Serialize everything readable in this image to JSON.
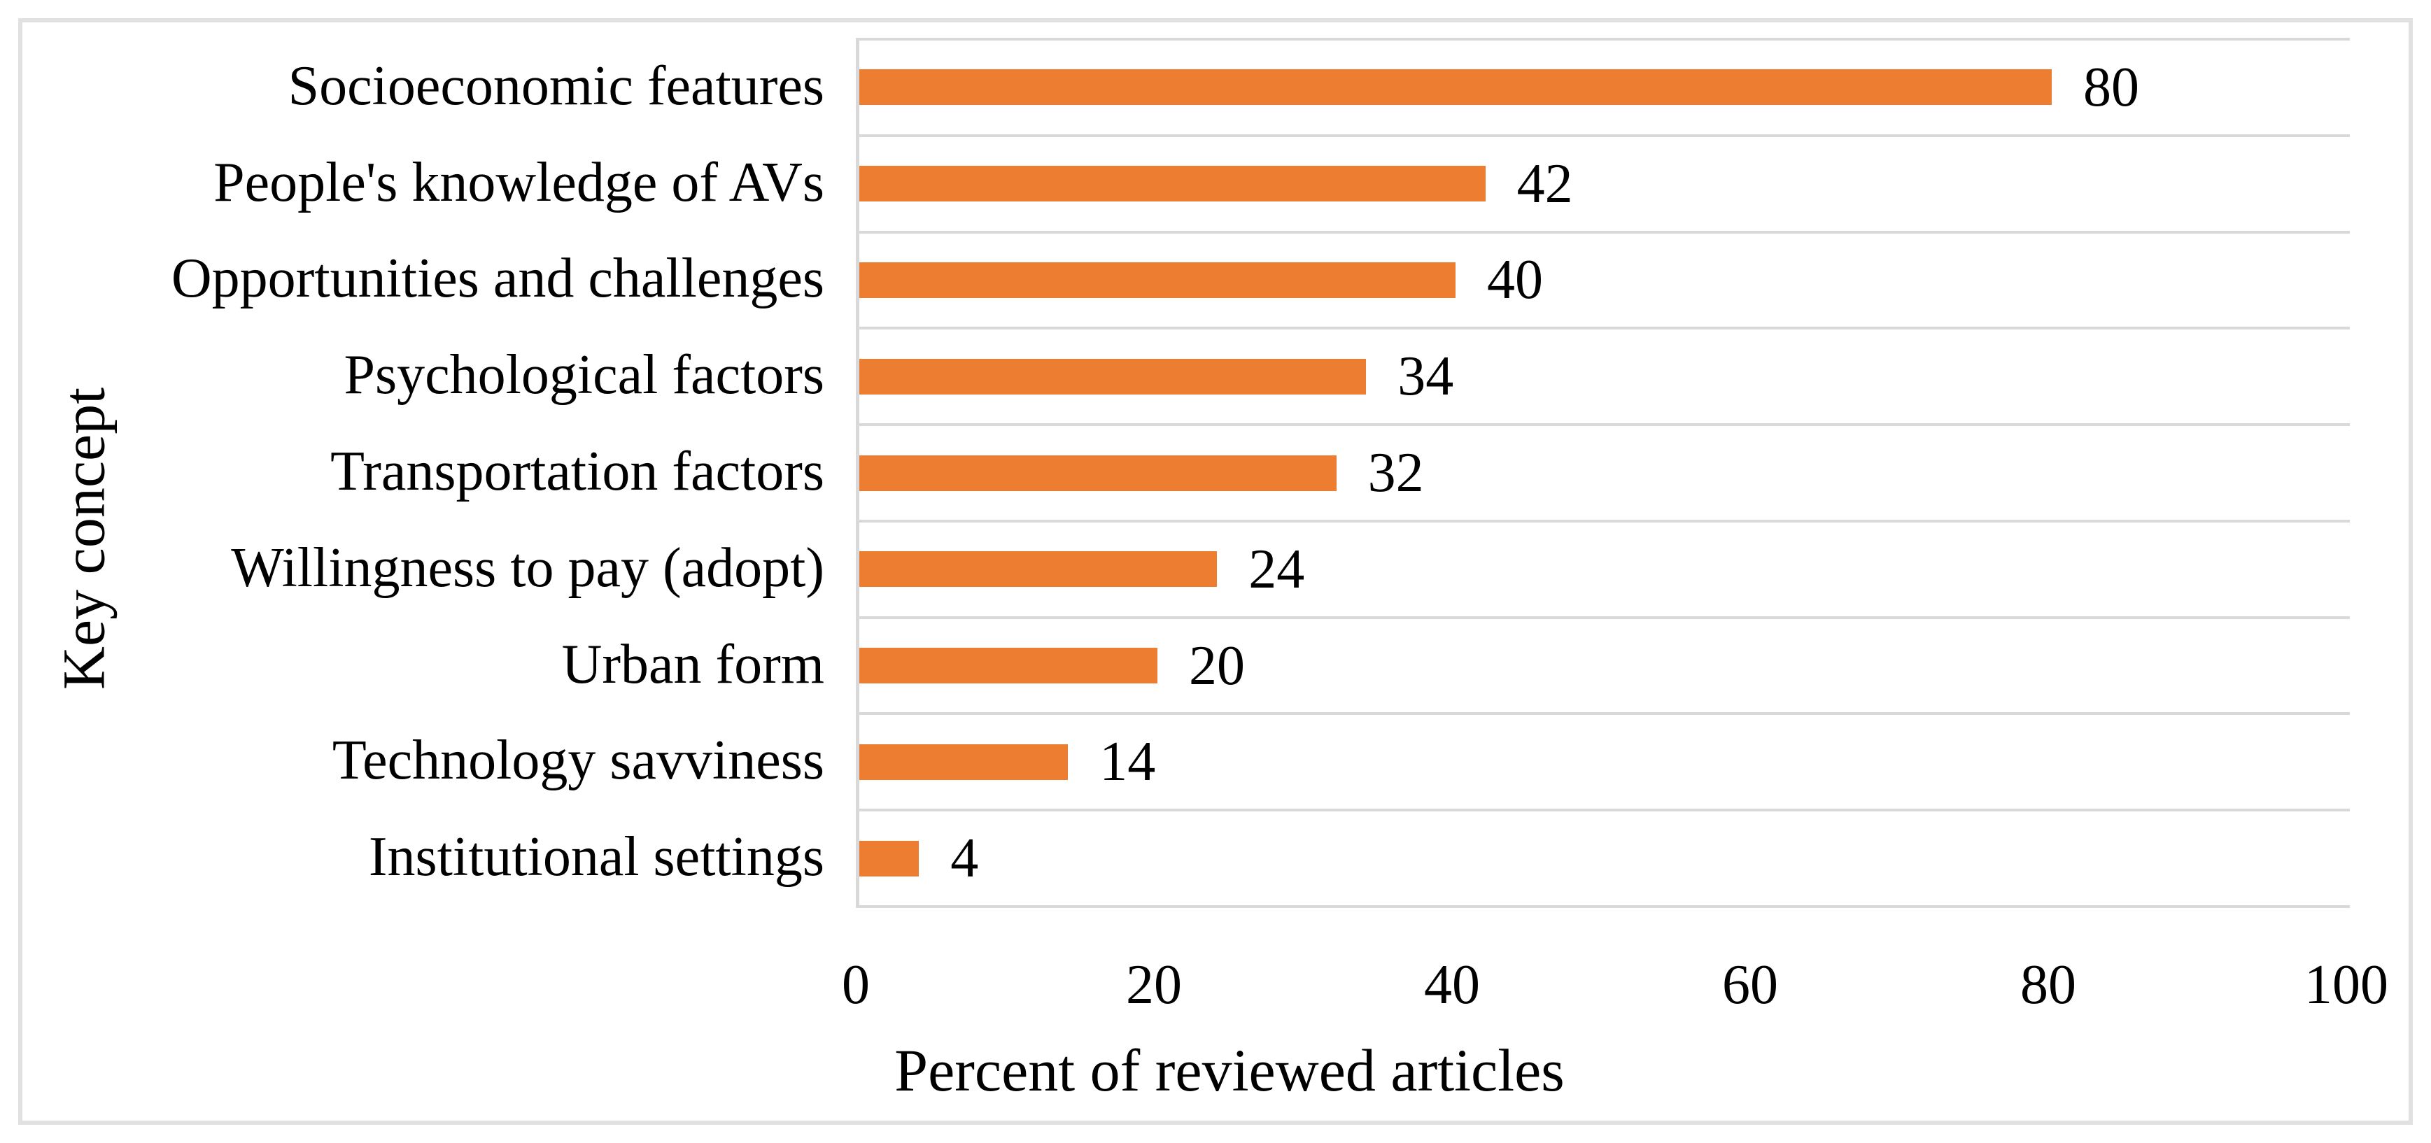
{
  "chart_data": {
    "type": "bar",
    "orientation": "horizontal",
    "categories": [
      "Socioeconomic features",
      "People's knowledge of AVs",
      "Opportunities and challenges",
      "Psychological factors",
      "Transportation factors",
      "Willingness to pay (adopt)",
      "Urban form",
      "Technology savviness",
      "Institutional settings"
    ],
    "values": [
      80,
      42,
      40,
      34,
      32,
      24,
      20,
      14,
      4
    ],
    "title": "",
    "xlabel": "Percent of reviewed articles",
    "ylabel": "Key concept",
    "xticks": [
      0,
      20,
      40,
      60,
      80,
      100
    ],
    "xlim": [
      0,
      100
    ],
    "grid": "horizontal-band-lines",
    "legend": "none",
    "data_labels": "outside-end",
    "colors": {
      "bar": "#ed7d31",
      "gridline": "#d9d9d9",
      "axis_line": "#d9d9d9",
      "text": "#000000",
      "figure_border": "#e1e1e1",
      "background": "#ffffff"
    }
  }
}
